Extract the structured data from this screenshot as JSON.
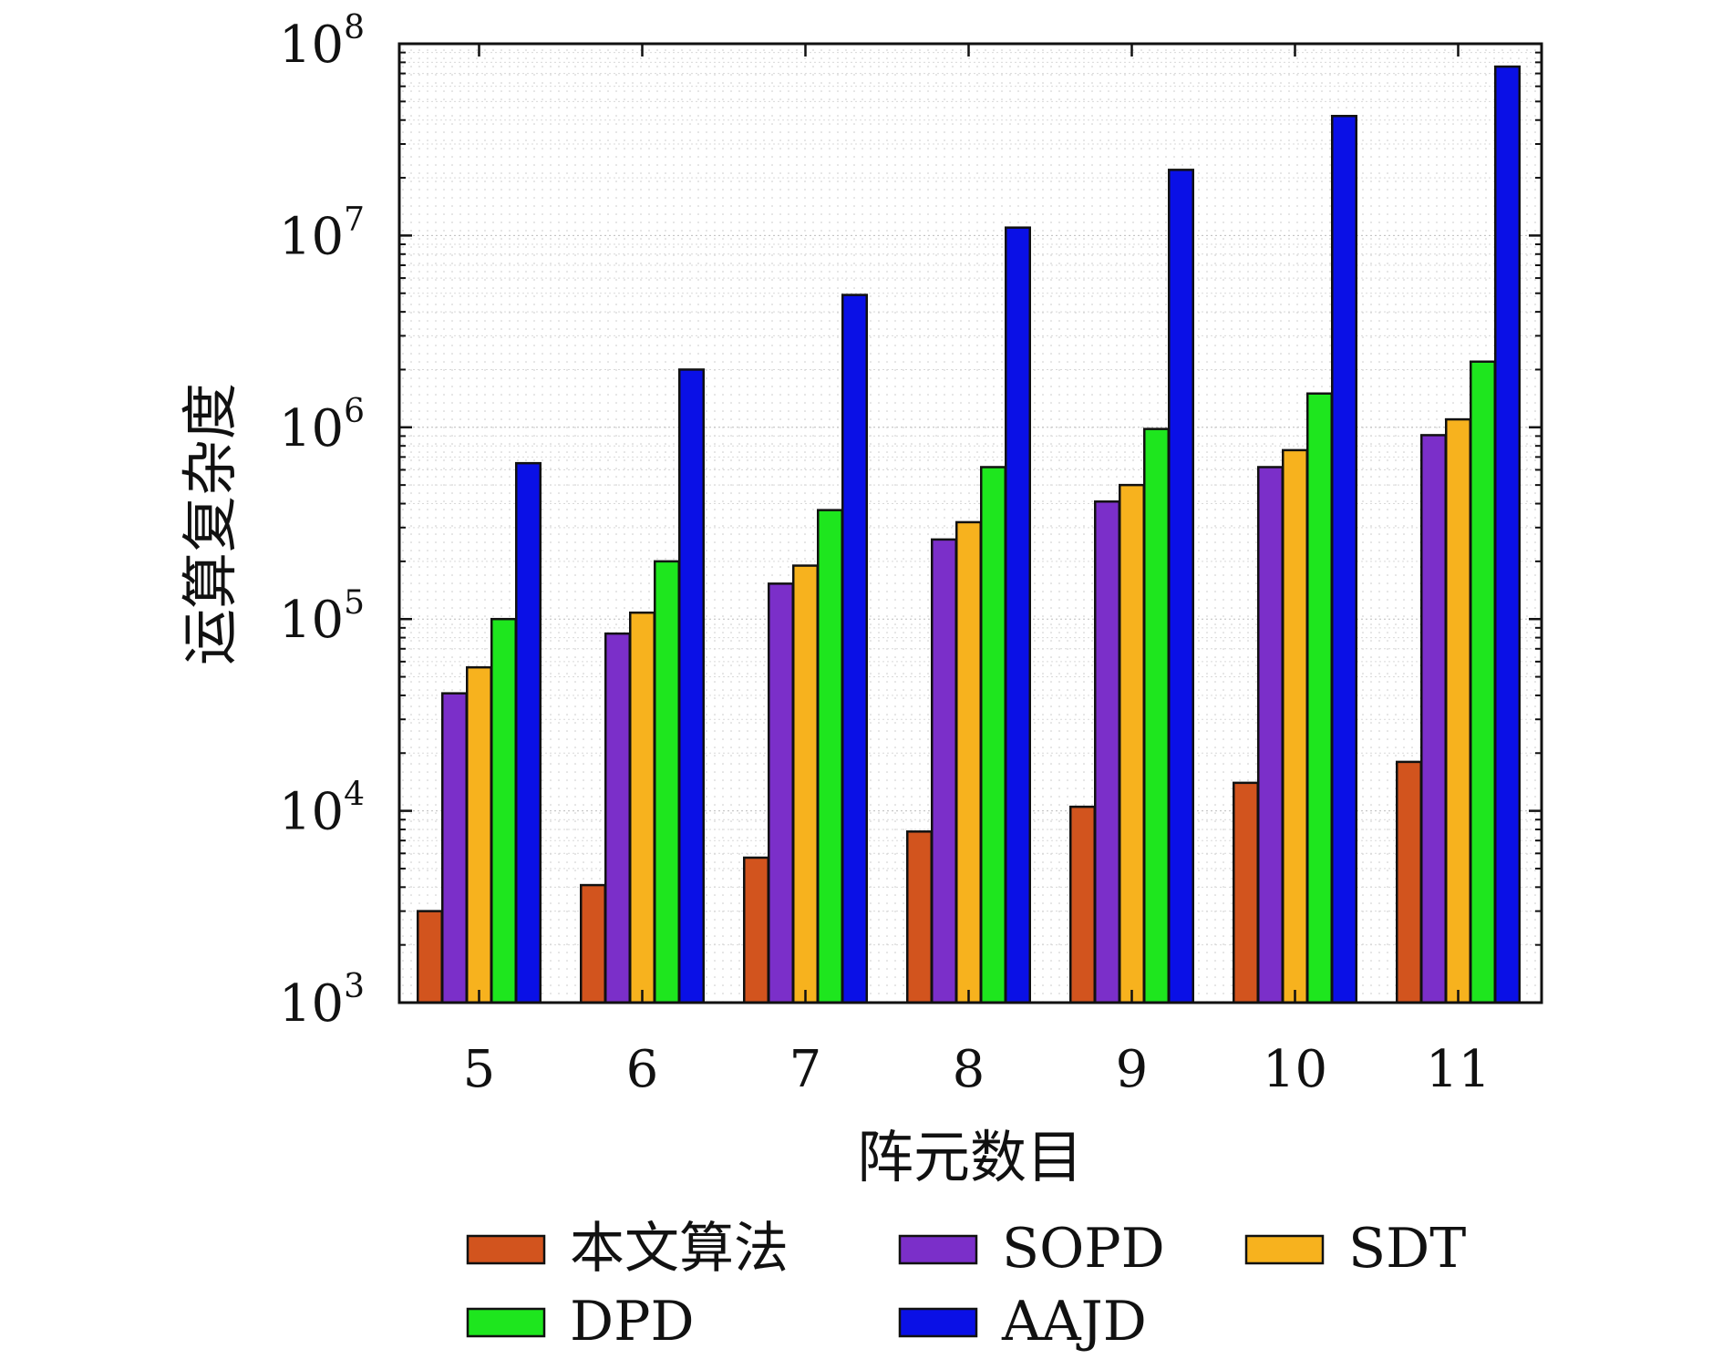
{
  "chart_data": {
    "type": "bar",
    "title": "",
    "xlabel": "阵元数目",
    "ylabel": "运算复杂度",
    "yscale": "log",
    "ylim": [
      1000,
      100000000
    ],
    "y_ticks": [
      {
        "value": 1000,
        "base": "10",
        "exp": "3"
      },
      {
        "value": 10000,
        "base": "10",
        "exp": "4"
      },
      {
        "value": 100000,
        "base": "10",
        "exp": "5"
      },
      {
        "value": 1000000,
        "base": "10",
        "exp": "6"
      },
      {
        "value": 10000000,
        "base": "10",
        "exp": "7"
      },
      {
        "value": 100000000,
        "base": "10",
        "exp": "8"
      }
    ],
    "categories": [
      "5",
      "6",
      "7",
      "8",
      "9",
      "10",
      "11"
    ],
    "grid": true,
    "legend_position": "bottom",
    "series": [
      {
        "name": "本文算法",
        "color": "#d2541e",
        "values": [
          3000,
          4100,
          5700,
          7800,
          10500,
          14000,
          18000
        ]
      },
      {
        "name": "SOPD",
        "color": "#7b2fc9",
        "values": [
          41000,
          84000,
          153000,
          260000,
          410000,
          620000,
          910000
        ]
      },
      {
        "name": "SDT",
        "color": "#f7b21e",
        "values": [
          56000,
          108000,
          190000,
          320000,
          500000,
          760000,
          1100000
        ]
      },
      {
        "name": "DPD",
        "color": "#1ee61e",
        "values": [
          100000,
          200000,
          370000,
          620000,
          980000,
          1500000,
          2200000
        ]
      },
      {
        "name": "AAJD",
        "color": "#0a10e6",
        "values": [
          650000,
          2000000,
          4900000,
          11000000,
          22000000,
          42000000,
          76000000
        ]
      }
    ]
  }
}
